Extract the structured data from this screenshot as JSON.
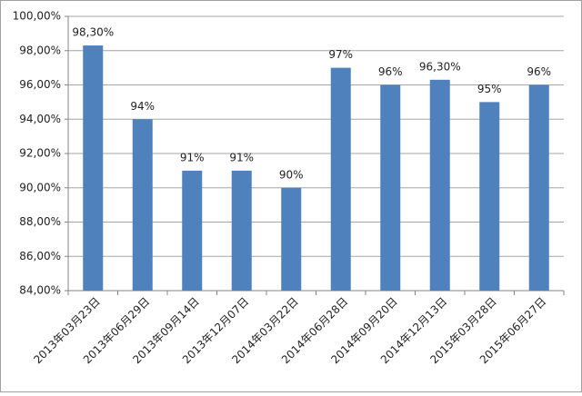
{
  "chart_data": {
    "type": "bar",
    "categories": [
      "2013年03月23日",
      "2013年06月29日",
      "2013年09月14日",
      "2013年12月07日",
      "2014年03月22日",
      "2014年06月28日",
      "2014年09月20日",
      "2014年12月13日",
      "2015年03月28日",
      "2015年06月27日"
    ],
    "values": [
      98.3,
      94,
      91,
      91,
      90,
      97,
      96,
      96.3,
      95,
      96
    ],
    "value_labels": [
      "98,30%",
      "94%",
      "91%",
      "91%",
      "90%",
      "97%",
      "96%",
      "96,30%",
      "95%",
      "96%"
    ],
    "color": "#4f81bd",
    "ylim": [
      84,
      100
    ],
    "yticks": [
      {
        "value": 84,
        "label": "84,00%"
      },
      {
        "value": 86,
        "label": "86,00%"
      },
      {
        "value": 88,
        "label": "88,00%"
      },
      {
        "value": 90,
        "label": "90,00%"
      },
      {
        "value": 92,
        "label": "92,00%"
      },
      {
        "value": 94,
        "label": "94,00%"
      },
      {
        "value": 96,
        "label": "96,00%"
      },
      {
        "value": 98,
        "label": "98,00%"
      },
      {
        "value": 100,
        "label": "100,00%"
      }
    ],
    "grid": true
  }
}
